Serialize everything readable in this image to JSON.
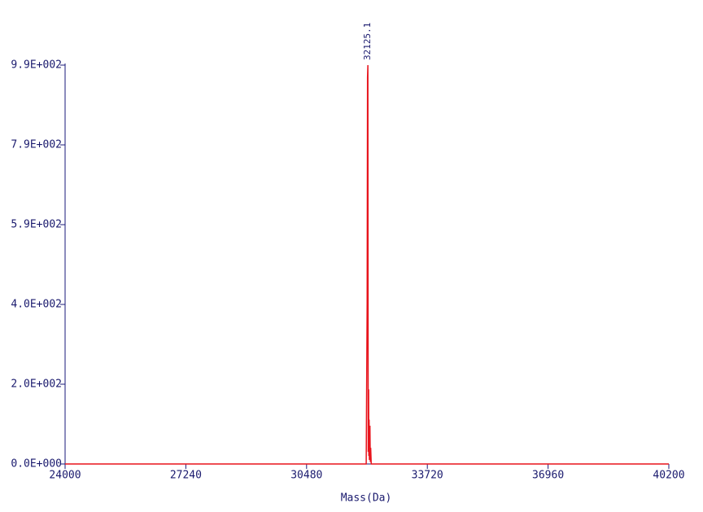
{
  "chart_data": {
    "type": "line",
    "x_label": "Mass(Da)",
    "x": [
      24000,
      32080,
      32105,
      32115,
      32125.1,
      32133,
      32140,
      32145,
      32150,
      32158,
      32165,
      32172,
      32180,
      32190,
      32200,
      32215,
      40200
    ],
    "series": [
      {
        "color": "#e8141c",
        "values": [
          0,
          0,
          400,
          960,
          990,
          30,
          100,
          185,
          20,
          110,
          10,
          60,
          95,
          5,
          40,
          0,
          0
        ]
      }
    ],
    "xlim": [
      24000,
      40200
    ],
    "xticks": [
      24000,
      27240,
      30480,
      33720,
      36960,
      40200
    ],
    "ylim": [
      0,
      990
    ],
    "yticks": [
      {
        "value": 0,
        "label": "0.0E+000"
      },
      {
        "value": 198,
        "label": "2.0E+002"
      },
      {
        "value": 396,
        "label": "4.0E+002"
      },
      {
        "value": 594,
        "label": "5.9E+002"
      },
      {
        "value": 792,
        "label": "7.9E+002"
      },
      {
        "value": 990,
        "label": "9.9E+002"
      }
    ],
    "axis_color": "#1a1a7a",
    "annotations": [
      {
        "label": "32125.1",
        "x": 32125.1,
        "y": 990
      }
    ]
  }
}
